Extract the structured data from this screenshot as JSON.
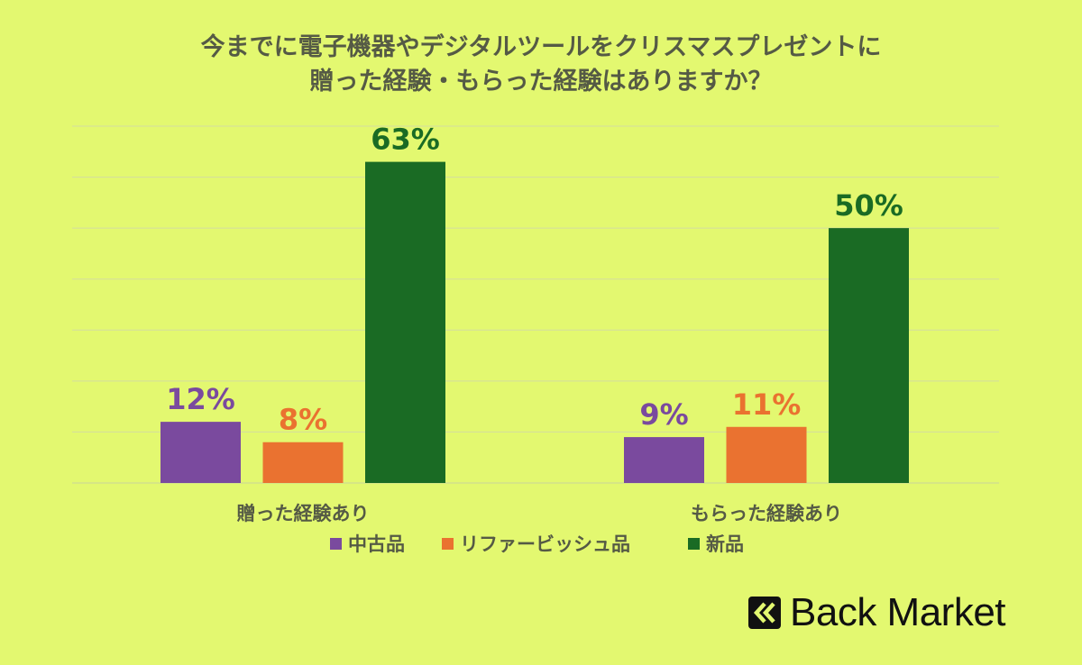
{
  "title_lines": [
    "今までに電子機器やデジタルツールをクリスマスプレゼントに",
    "贈った経験・もらった経験はありますか？"
  ],
  "chart_data": {
    "type": "bar",
    "title": "今までに電子機器やデジタルツールをクリスマスプレゼントに贈った経験・もらった経験はありますか？",
    "categories": [
      "贈った経験あり",
      "もらった経験あり"
    ],
    "series": [
      {
        "name": "中古品",
        "values": [
          12,
          9
        ],
        "color": "#7a4a9e",
        "labels": [
          "12%",
          "9%"
        ]
      },
      {
        "name": "リファービッシュ品",
        "values": [
          8,
          11
        ],
        "color": "#ea7230",
        "labels": [
          "8%",
          "11%"
        ]
      },
      {
        "name": "新品",
        "values": [
          63,
          50
        ],
        "color": "#1a6b24",
        "labels": [
          "63%",
          "50%"
        ]
      }
    ],
    "ylim": [
      0,
      70
    ],
    "grid": true,
    "legend": "bottom",
    "unit": "%"
  },
  "brand": {
    "name": "Back Market"
  }
}
